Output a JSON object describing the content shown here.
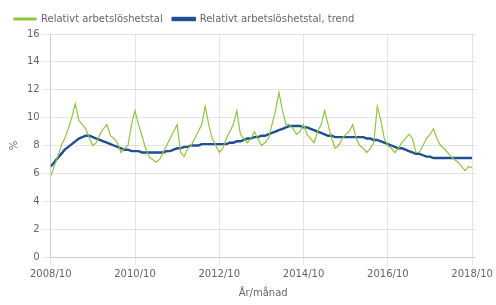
{
  "chart_data": {
    "type": "line",
    "xlabel": "År/månad",
    "ylabel": "%",
    "x": [
      2008.75,
      2008.8333333333333,
      2008.9166666666667,
      2009.0,
      2009.0833333333333,
      2009.1666666666667,
      2009.25,
      2009.3333333333333,
      2009.4166666666667,
      2009.5,
      2009.5833333333333,
      2009.6666666666667,
      2009.75,
      2009.8333333333333,
      2009.9166666666667,
      2010.0,
      2010.0833333333333,
      2010.1666666666667,
      2010.25,
      2010.3333333333333,
      2010.4166666666667,
      2010.5,
      2010.5833333333333,
      2010.6666666666667,
      2010.75,
      2010.8333333333333,
      2010.9166666666667,
      2011.0,
      2011.0833333333333,
      2011.1666666666667,
      2011.25,
      2011.3333333333333,
      2011.4166666666667,
      2011.5,
      2011.5833333333333,
      2011.6666666666667,
      2011.75,
      2011.8333333333333,
      2011.9166666666667,
      2012.0,
      2012.0833333333333,
      2012.1666666666667,
      2012.25,
      2012.3333333333333,
      2012.4166666666667,
      2012.5,
      2012.5833333333333,
      2012.6666666666667,
      2012.75,
      2012.8333333333333,
      2012.9166666666667,
      2013.0,
      2013.0833333333333,
      2013.1666666666667,
      2013.25,
      2013.3333333333333,
      2013.4166666666667,
      2013.5,
      2013.5833333333333,
      2013.6666666666667,
      2013.75,
      2013.8333333333333,
      2013.9166666666667,
      2014.0,
      2014.0833333333333,
      2014.1666666666667,
      2014.25,
      2014.3333333333333,
      2014.4166666666667,
      2014.5,
      2014.5833333333333,
      2014.6666666666667,
      2014.75,
      2014.8333333333333,
      2014.9166666666667,
      2015.0,
      2015.0833333333333,
      2015.1666666666667,
      2015.25,
      2015.3333333333333,
      2015.4166666666667,
      2015.5,
      2015.5833333333333,
      2015.6666666666667,
      2015.75,
      2015.8333333333333,
      2015.9166666666667,
      2016.0,
      2016.0833333333333,
      2016.1666666666667,
      2016.25,
      2016.3333333333333,
      2016.4166666666667,
      2016.5,
      2016.5833333333333,
      2016.6666666666667,
      2016.75,
      2016.8333333333333,
      2016.9166666666667,
      2017.0,
      2017.0833333333333,
      2017.1666666666667,
      2017.25,
      2017.3333333333333,
      2017.4166666666667,
      2017.5,
      2017.5833333333333,
      2017.6666666666667,
      2017.75,
      2017.8333333333333,
      2017.9166666666667,
      2018.0,
      2018.0833333333333,
      2018.1666666666667,
      2018.25,
      2018.3333333333333,
      2018.4166666666667,
      2018.5,
      2018.5833333333333,
      2018.6666666666667,
      2018.75
    ],
    "series": [
      {
        "name": "Relativt arbetslöshetstal",
        "color": "#8DC63F",
        "values": [
          5.8,
          6.5,
          7.2,
          8.0,
          8.5,
          9.2,
          10.0,
          11.0,
          9.8,
          9.5,
          9.2,
          8.5,
          8.0,
          8.2,
          8.8,
          9.2,
          9.5,
          8.7,
          8.5,
          8.2,
          7.5,
          7.8,
          8.0,
          9.5,
          10.5,
          9.5,
          8.7,
          7.8,
          7.2,
          7.0,
          6.8,
          7.0,
          7.5,
          8.0,
          8.5,
          9.0,
          9.5,
          7.5,
          7.2,
          7.8,
          8.0,
          8.5,
          9.0,
          9.5,
          10.8,
          9.5,
          8.5,
          8.0,
          7.5,
          7.8,
          8.5,
          9.0,
          9.5,
          10.5,
          8.8,
          8.5,
          8.2,
          8.5,
          9.0,
          8.5,
          8.0,
          8.2,
          8.5,
          9.5,
          10.5,
          11.8,
          10.5,
          9.5,
          9.5,
          9.2,
          8.8,
          9.0,
          9.5,
          8.8,
          8.5,
          8.2,
          9.0,
          9.5,
          10.5,
          9.5,
          8.5,
          7.8,
          8.0,
          8.5,
          8.8,
          9.0,
          9.5,
          8.5,
          8.0,
          7.8,
          7.5,
          7.8,
          8.2,
          10.8,
          9.8,
          8.5,
          8.0,
          7.8,
          7.5,
          7.8,
          8.2,
          8.5,
          8.8,
          8.5,
          7.5,
          7.5,
          8.0,
          8.5,
          8.8,
          9.2,
          8.5,
          8.0,
          7.8,
          7.5,
          7.2,
          7.0,
          6.8,
          6.5,
          6.2,
          6.5,
          6.4
        ]
      },
      {
        "name": "Relativt arbetslöshetstal, trend",
        "color": "#1F4E96",
        "values": [
          6.5,
          6.8,
          7.1,
          7.4,
          7.7,
          7.9,
          8.1,
          8.3,
          8.5,
          8.6,
          8.7,
          8.7,
          8.6,
          8.5,
          8.4,
          8.3,
          8.2,
          8.1,
          8.0,
          7.9,
          7.8,
          7.7,
          7.7,
          7.6,
          7.6,
          7.6,
          7.5,
          7.5,
          7.5,
          7.5,
          7.5,
          7.5,
          7.5,
          7.6,
          7.6,
          7.7,
          7.8,
          7.8,
          7.9,
          7.9,
          8.0,
          8.0,
          8.0,
          8.1,
          8.1,
          8.1,
          8.1,
          8.1,
          8.1,
          8.1,
          8.1,
          8.2,
          8.2,
          8.3,
          8.3,
          8.4,
          8.5,
          8.5,
          8.6,
          8.6,
          8.7,
          8.7,
          8.8,
          8.9,
          9.0,
          9.1,
          9.2,
          9.3,
          9.4,
          9.4,
          9.4,
          9.4,
          9.3,
          9.3,
          9.2,
          9.1,
          9.0,
          8.9,
          8.8,
          8.7,
          8.7,
          8.6,
          8.6,
          8.6,
          8.6,
          8.6,
          8.6,
          8.6,
          8.6,
          8.6,
          8.5,
          8.5,
          8.4,
          8.4,
          8.3,
          8.2,
          8.1,
          8.0,
          7.9,
          7.8,
          7.8,
          7.7,
          7.6,
          7.5,
          7.4,
          7.4,
          7.3,
          7.2,
          7.2,
          7.1,
          7.1,
          7.1,
          7.1,
          7.1,
          7.1,
          7.1,
          7.1,
          7.1,
          7.1,
          7.1,
          7.1
        ]
      }
    ],
    "xlim": [
      2008.75,
      2018.833
    ],
    "xticks": [
      {
        "value": 2008.75,
        "label": "2008/10"
      },
      {
        "value": 2010.75,
        "label": "2010/10"
      },
      {
        "value": 2012.75,
        "label": "2012/10"
      },
      {
        "value": 2014.75,
        "label": "2014/10"
      },
      {
        "value": 2016.75,
        "label": "2016/10"
      },
      {
        "value": 2018.75,
        "label": "2018/10"
      }
    ],
    "ylim": [
      0,
      16
    ],
    "yticks": [
      0,
      2,
      4,
      6,
      8,
      10,
      12,
      14,
      16
    ],
    "grid": true,
    "legend": "top"
  }
}
